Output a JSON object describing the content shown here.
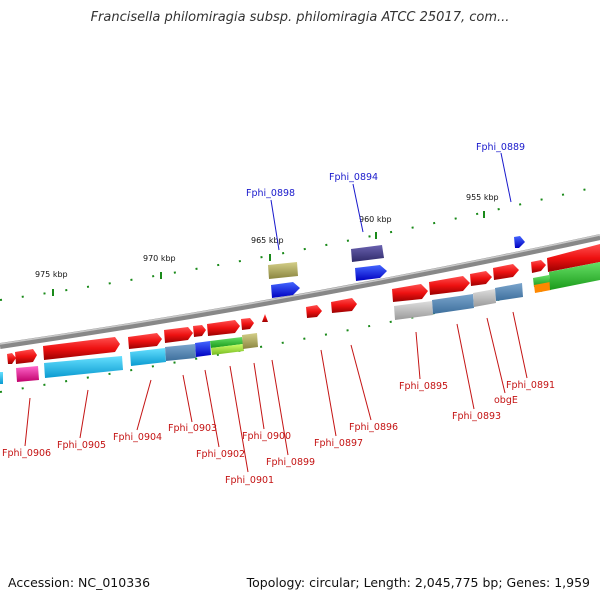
{
  "title": "Francisella philomiragia subsp. philomiragia ATCC 25017, com...",
  "footer": {
    "accession": "Accession: NC_010336",
    "summary": "Topology: circular; Length: 2,045,775 bp; Genes: 1,959"
  },
  "ticks": [
    "975 kbp",
    "970 kbp",
    "965 kbp",
    "960 kbp",
    "955 kbp"
  ],
  "genes_above": [
    "Fphi_0898",
    "Fphi_0894",
    "Fphi_0889"
  ],
  "genes_below": [
    "Fphi_0906",
    "Fphi_0905",
    "Fphi_0904",
    "Fphi_0903",
    "Fphi_0902",
    "Fphi_0901",
    "Fphi_0900",
    "Fphi_0899",
    "Fphi_0897",
    "Fphi_0896",
    "Fphi_0895",
    "Fphi_0893",
    "obgE",
    "Fphi_0891"
  ],
  "colors": {
    "backbone": "#888888",
    "forward_gene": "#ee1111",
    "tick_dash": "#1a8a1a",
    "label_above": "#1a1acc",
    "label_below": "#c41414"
  }
}
